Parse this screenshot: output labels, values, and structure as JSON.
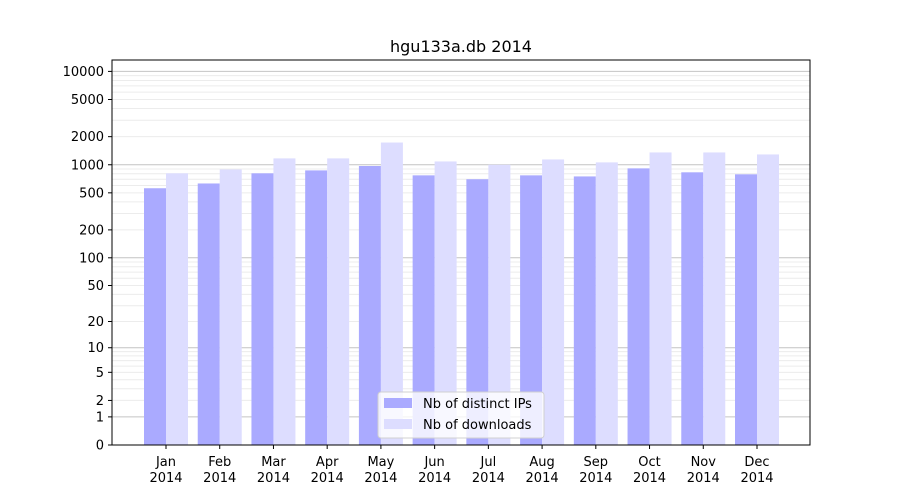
{
  "chart_data": {
    "type": "bar",
    "title": "hgu133a.db 2014",
    "xlabel": "",
    "ylabel": "",
    "yscale": "symlog",
    "ylim": [
      0,
      13000
    ],
    "yticks": [
      0,
      1,
      2,
      5,
      10,
      20,
      50,
      100,
      200,
      500,
      1000,
      2000,
      5000,
      10000
    ],
    "grid": true,
    "legend_position": "lower center",
    "categories": [
      "Jan\n2014",
      "Feb\n2014",
      "Mar\n2014",
      "Apr\n2014",
      "May\n2014",
      "Jun\n2014",
      "Jul\n2014",
      "Aug\n2014",
      "Sep\n2014",
      "Oct\n2014",
      "Nov\n2014",
      "Dec\n2014"
    ],
    "series": [
      {
        "name": "Nb of distinct IPs",
        "color": "#aaaaff",
        "values": [
          560,
          630,
          810,
          870,
          970,
          770,
          700,
          770,
          750,
          915,
          830,
          790
        ]
      },
      {
        "name": "Nb of downloads",
        "color": "#ddddff",
        "values": [
          810,
          890,
          1170,
          1170,
          1730,
          1085,
          1000,
          1140,
          1060,
          1355,
          1355,
          1290
        ]
      }
    ]
  }
}
